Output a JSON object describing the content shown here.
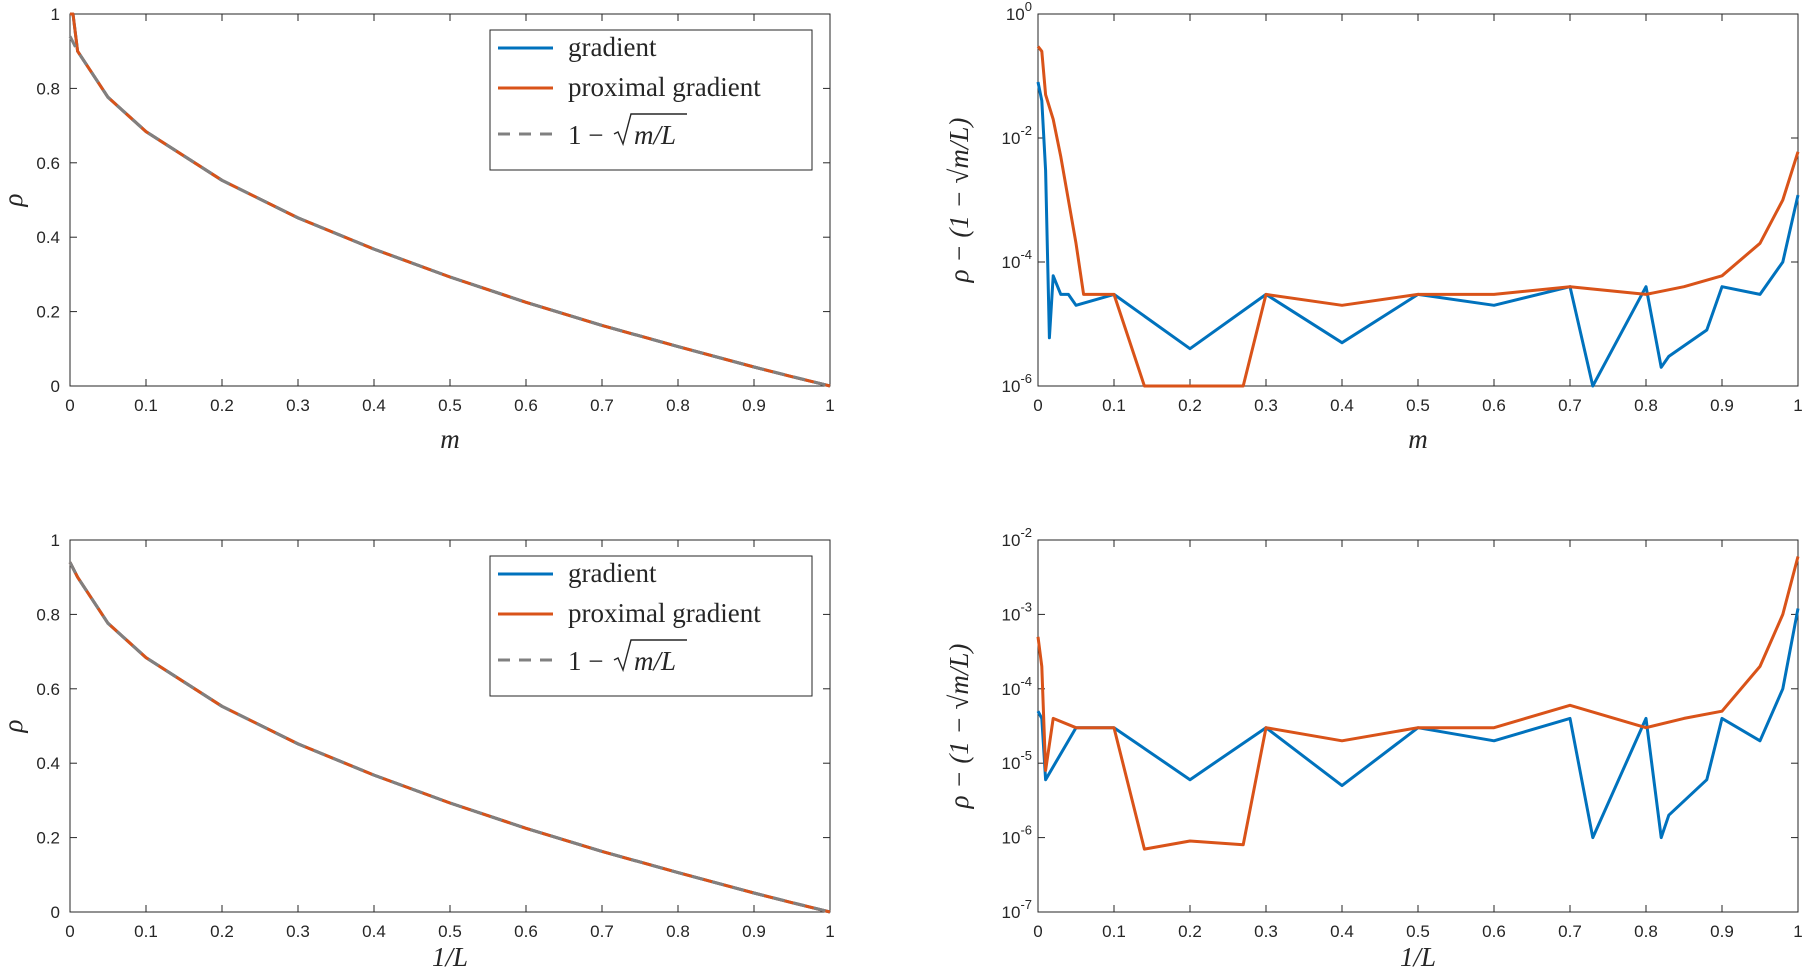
{
  "colors": {
    "gradient": "#0072BD",
    "proximal": "#D95319",
    "reference": "#808080",
    "axis": "#262626"
  },
  "chart_data": [
    {
      "id": "top-left",
      "type": "line",
      "xlabel": "m",
      "ylabel": "ρ",
      "xlim": [
        0,
        1
      ],
      "ylim": [
        0,
        1
      ],
      "yscale": "linear",
      "xticks": [
        "0",
        "0.1",
        "0.2",
        "0.3",
        "0.4",
        "0.5",
        "0.6",
        "0.7",
        "0.8",
        "0.9",
        "1"
      ],
      "yticks": [
        "0",
        "0.2",
        "0.4",
        "0.6",
        "0.8",
        "1"
      ],
      "legend": {
        "position": "top-right",
        "entries": [
          "gradient",
          "proximal gradient",
          "1 − √m/L"
        ]
      },
      "series": [
        {
          "name": "gradient",
          "x": [
            0,
            0.004,
            0.01,
            0.05,
            0.1,
            0.2,
            0.3,
            0.4,
            0.5,
            0.6,
            0.7,
            0.8,
            0.9,
            0.95,
            0.99,
            1
          ],
          "y": [
            1.0,
            1.0,
            0.9,
            0.776,
            0.684,
            0.553,
            0.452,
            0.368,
            0.293,
            0.225,
            0.163,
            0.106,
            0.051,
            0.025,
            0.005,
            0.0
          ]
        },
        {
          "name": "proximal gradient",
          "x": [
            0,
            0.004,
            0.01,
            0.05,
            0.1,
            0.2,
            0.3,
            0.4,
            0.5,
            0.6,
            0.7,
            0.8,
            0.9,
            0.95,
            0.99,
            1
          ],
          "y": [
            1.0,
            1.0,
            0.9,
            0.776,
            0.684,
            0.553,
            0.452,
            0.368,
            0.293,
            0.225,
            0.163,
            0.106,
            0.051,
            0.025,
            0.005,
            0.0
          ]
        },
        {
          "name": "1 − √m/L",
          "x": [
            0,
            0.01,
            0.05,
            0.1,
            0.2,
            0.3,
            0.4,
            0.5,
            0.6,
            0.7,
            0.8,
            0.9,
            1
          ],
          "y": [
            0.94,
            0.9,
            0.776,
            0.684,
            0.553,
            0.452,
            0.368,
            0.293,
            0.225,
            0.163,
            0.106,
            0.051,
            0.0
          ]
        }
      ]
    },
    {
      "id": "top-right",
      "type": "line",
      "xlabel": "m",
      "ylabel": "ρ − (1 − √m/L)",
      "xlim": [
        0,
        1
      ],
      "ylim": [
        1e-06,
        1
      ],
      "yscale": "log",
      "xticks": [
        "0",
        "0.1",
        "0.2",
        "0.3",
        "0.4",
        "0.5",
        "0.6",
        "0.7",
        "0.8",
        "0.9",
        "1"
      ],
      "yticks": [
        {
          "base": "10",
          "exp": "-6"
        },
        {
          "base": "10",
          "exp": "-4"
        },
        {
          "base": "10",
          "exp": "-2"
        },
        {
          "base": "10",
          "exp": "0"
        }
      ],
      "series": [
        {
          "name": "gradient",
          "x": [
            0,
            0.005,
            0.01,
            0.015,
            0.02,
            0.03,
            0.04,
            0.05,
            0.1,
            0.2,
            0.3,
            0.4,
            0.5,
            0.6,
            0.7,
            0.73,
            0.8,
            0.82,
            0.83,
            0.88,
            0.9,
            0.95,
            0.98,
            1
          ],
          "y": [
            0.08,
            0.04,
            0.003,
            6e-06,
            6e-05,
            3e-05,
            3e-05,
            2e-05,
            3e-05,
            4e-06,
            3e-05,
            5e-06,
            3e-05,
            2e-05,
            4e-05,
            1e-06,
            4e-05,
            2e-06,
            3e-06,
            8e-06,
            4e-05,
            3e-05,
            0.0001,
            0.0012
          ]
        },
        {
          "name": "proximal gradient",
          "x": [
            0,
            0.005,
            0.01,
            0.02,
            0.03,
            0.04,
            0.05,
            0.06,
            0.1,
            0.14,
            0.2,
            0.27,
            0.3,
            0.4,
            0.5,
            0.6,
            0.7,
            0.8,
            0.85,
            0.9,
            0.95,
            0.98,
            1
          ],
          "y": [
            0.3,
            0.25,
            0.05,
            0.02,
            0.005,
            0.001,
            0.0002,
            3e-05,
            3e-05,
            8e-07,
            1e-06,
            1e-06,
            3e-05,
            2e-05,
            3e-05,
            3e-05,
            4e-05,
            3e-05,
            4e-05,
            6e-05,
            0.0002,
            0.001,
            0.006
          ]
        }
      ]
    },
    {
      "id": "bottom-left",
      "type": "line",
      "xlabel": "1/L",
      "ylabel": "ρ",
      "xlim": [
        0,
        1
      ],
      "ylim": [
        0,
        1
      ],
      "yscale": "linear",
      "xticks": [
        "0",
        "0.1",
        "0.2",
        "0.3",
        "0.4",
        "0.5",
        "0.6",
        "0.7",
        "0.8",
        "0.9",
        "1"
      ],
      "yticks": [
        "0",
        "0.2",
        "0.4",
        "0.6",
        "0.8",
        "1"
      ],
      "legend": {
        "position": "top-right",
        "entries": [
          "gradient",
          "proximal gradient",
          "1 − √m/L"
        ]
      },
      "series": [
        {
          "name": "gradient",
          "x": [
            0,
            0.01,
            0.05,
            0.1,
            0.2,
            0.3,
            0.4,
            0.5,
            0.6,
            0.7,
            0.8,
            0.9,
            0.95,
            1
          ],
          "y": [
            0.94,
            0.9,
            0.776,
            0.684,
            0.553,
            0.452,
            0.368,
            0.293,
            0.225,
            0.163,
            0.106,
            0.051,
            0.025,
            0.0
          ]
        },
        {
          "name": "proximal gradient",
          "x": [
            0,
            0.01,
            0.05,
            0.1,
            0.2,
            0.3,
            0.4,
            0.5,
            0.6,
            0.7,
            0.8,
            0.9,
            0.95,
            1
          ],
          "y": [
            0.94,
            0.9,
            0.776,
            0.684,
            0.553,
            0.452,
            0.368,
            0.293,
            0.225,
            0.163,
            0.106,
            0.051,
            0.025,
            0.0
          ]
        },
        {
          "name": "1 − √m/L",
          "x": [
            0,
            0.01,
            0.05,
            0.1,
            0.2,
            0.3,
            0.4,
            0.5,
            0.6,
            0.7,
            0.8,
            0.9,
            1
          ],
          "y": [
            0.94,
            0.9,
            0.776,
            0.684,
            0.553,
            0.452,
            0.368,
            0.293,
            0.225,
            0.163,
            0.106,
            0.051,
            0.0
          ]
        }
      ]
    },
    {
      "id": "bottom-right",
      "type": "line",
      "xlabel": "1/L",
      "ylabel": "ρ − (1 − √m/L)",
      "xlim": [
        0,
        1
      ],
      "ylim": [
        1e-07,
        0.01
      ],
      "yscale": "log",
      "xticks": [
        "0",
        "0.1",
        "0.2",
        "0.3",
        "0.4",
        "0.5",
        "0.6",
        "0.7",
        "0.8",
        "0.9",
        "1"
      ],
      "yticks": [
        {
          "base": "10",
          "exp": "-7"
        },
        {
          "base": "10",
          "exp": "-6"
        },
        {
          "base": "10",
          "exp": "-5"
        },
        {
          "base": "10",
          "exp": "-4"
        },
        {
          "base": "10",
          "exp": "-3"
        },
        {
          "base": "10",
          "exp": "-2"
        }
      ],
      "series": [
        {
          "name": "gradient",
          "x": [
            0,
            0.005,
            0.01,
            0.05,
            0.1,
            0.2,
            0.3,
            0.4,
            0.5,
            0.6,
            0.7,
            0.73,
            0.8,
            0.82,
            0.83,
            0.88,
            0.9,
            0.95,
            0.98,
            1
          ],
          "y": [
            5e-05,
            4e-05,
            6e-06,
            3e-05,
            3e-05,
            6e-06,
            3e-05,
            5e-06,
            3e-05,
            2e-05,
            4e-05,
            1e-06,
            4e-05,
            1e-06,
            2e-06,
            6e-06,
            4e-05,
            2e-05,
            0.0001,
            0.0012
          ]
        },
        {
          "name": "proximal gradient",
          "x": [
            0,
            0.005,
            0.01,
            0.02,
            0.05,
            0.1,
            0.14,
            0.2,
            0.27,
            0.3,
            0.4,
            0.5,
            0.6,
            0.7,
            0.8,
            0.85,
            0.9,
            0.95,
            0.98,
            1
          ],
          "y": [
            0.0005,
            0.0002,
            8e-06,
            4e-05,
            3e-05,
            3e-05,
            7e-07,
            9e-07,
            8e-07,
            3e-05,
            2e-05,
            3e-05,
            3e-05,
            6e-05,
            3e-05,
            4e-05,
            5e-05,
            0.0002,
            0.001,
            0.006
          ]
        }
      ]
    }
  ]
}
